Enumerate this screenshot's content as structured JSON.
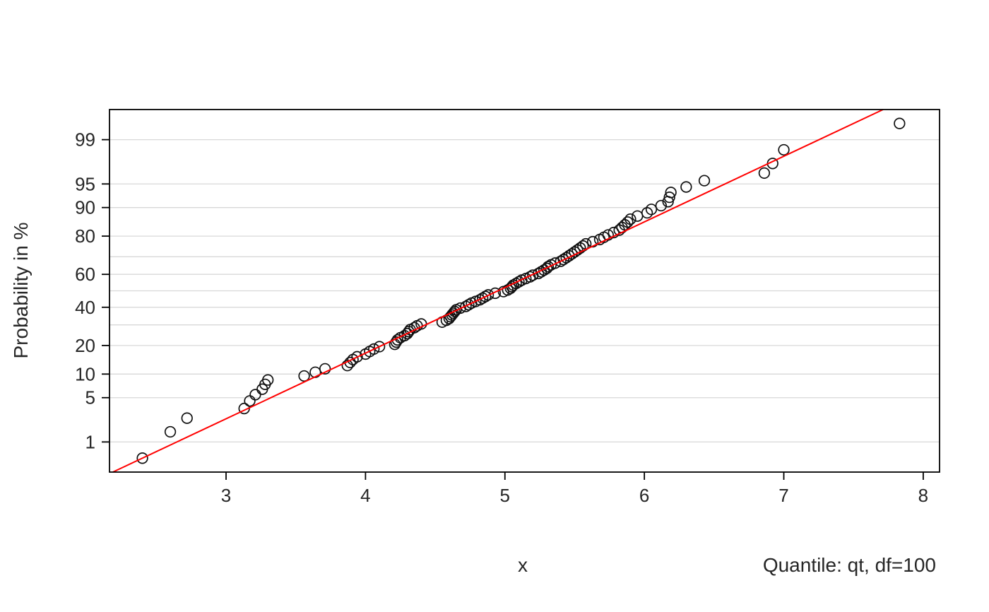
{
  "chart_data": {
    "type": "scatter",
    "subtype": "normal-probability-qq-plot",
    "title": "",
    "xlabel": "x",
    "ylabel": "Probability in %",
    "annotation": "Quantile: qt, df=100",
    "x_ticks": [
      3,
      4,
      5,
      6,
      7,
      8
    ],
    "xlim": [
      2.164,
      8.117
    ],
    "y_scale": "normal-probability",
    "y_range_percent": [
      0.26,
      99.74
    ],
    "y_tick_labels": [
      99,
      95,
      90,
      80,
      60,
      40,
      20,
      10,
      5,
      1
    ],
    "y_gridlines_percent": [
      1,
      5,
      10,
      20,
      30,
      40,
      50,
      60,
      70,
      80,
      90,
      95,
      99
    ],
    "grid_on": true,
    "reference_line": {
      "color": "#ff0000",
      "intercept": 4.95,
      "slope": 0.99,
      "note": "x = intercept + slope * qnorm(p)"
    },
    "point_style": {
      "marker": "open-circle",
      "color": "#111111",
      "radius": 7.3
    },
    "colors": {
      "grid": "#d8d8d8",
      "box": "#000000",
      "text": "#262626",
      "background": "#ffffff"
    },
    "points": [
      [
        2.4,
        0.5
      ],
      [
        2.6,
        1.5
      ],
      [
        2.72,
        2.5
      ],
      [
        3.13,
        3.5
      ],
      [
        3.17,
        4.5
      ],
      [
        3.21,
        5.5
      ],
      [
        3.26,
        6.5
      ],
      [
        3.28,
        7.5
      ],
      [
        3.3,
        8.5
      ],
      [
        3.56,
        9.5
      ],
      [
        3.64,
        10.5
      ],
      [
        3.71,
        11.5
      ],
      [
        3.87,
        12.5
      ],
      [
        3.89,
        13.5
      ],
      [
        3.91,
        14.5
      ],
      [
        3.94,
        15.5
      ],
      [
        4.0,
        16.5
      ],
      [
        4.03,
        17.5
      ],
      [
        4.06,
        18.5
      ],
      [
        4.1,
        19.5
      ],
      [
        4.21,
        20.5
      ],
      [
        4.22,
        21.5
      ],
      [
        4.23,
        22.5
      ],
      [
        4.25,
        23.5
      ],
      [
        4.28,
        24.5
      ],
      [
        4.3,
        25.5
      ],
      [
        4.31,
        26.5
      ],
      [
        4.32,
        27.5
      ],
      [
        4.35,
        28.5
      ],
      [
        4.37,
        29.5
      ],
      [
        4.4,
        30.5
      ],
      [
        4.55,
        31.5
      ],
      [
        4.58,
        32.5
      ],
      [
        4.6,
        33.5
      ],
      [
        4.61,
        34.5
      ],
      [
        4.62,
        35.5
      ],
      [
        4.63,
        36.5
      ],
      [
        4.64,
        37.5
      ],
      [
        4.65,
        38.5
      ],
      [
        4.68,
        39.5
      ],
      [
        4.72,
        40.5
      ],
      [
        4.74,
        41.5
      ],
      [
        4.76,
        42.5
      ],
      [
        4.79,
        43.5
      ],
      [
        4.82,
        44.5
      ],
      [
        4.84,
        45.5
      ],
      [
        4.86,
        46.5
      ],
      [
        4.88,
        47.5
      ],
      [
        4.93,
        48.5
      ],
      [
        4.99,
        49.5
      ],
      [
        5.02,
        50.5
      ],
      [
        5.04,
        51.5
      ],
      [
        5.05,
        52.5
      ],
      [
        5.06,
        53.5
      ],
      [
        5.08,
        54.5
      ],
      [
        5.1,
        55.5
      ],
      [
        5.12,
        56.5
      ],
      [
        5.15,
        57.5
      ],
      [
        5.18,
        58.5
      ],
      [
        5.2,
        59.5
      ],
      [
        5.24,
        60.5
      ],
      [
        5.26,
        61.5
      ],
      [
        5.28,
        62.5
      ],
      [
        5.3,
        63.5
      ],
      [
        5.31,
        64.5
      ],
      [
        5.33,
        65.5
      ],
      [
        5.36,
        66.5
      ],
      [
        5.4,
        67.5
      ],
      [
        5.42,
        68.5
      ],
      [
        5.44,
        69.5
      ],
      [
        5.46,
        70.5
      ],
      [
        5.48,
        71.5
      ],
      [
        5.5,
        72.5
      ],
      [
        5.52,
        73.5
      ],
      [
        5.54,
        74.5
      ],
      [
        5.56,
        75.5
      ],
      [
        5.58,
        76.5
      ],
      [
        5.63,
        77.5
      ],
      [
        5.68,
        78.5
      ],
      [
        5.71,
        79.5
      ],
      [
        5.74,
        80.5
      ],
      [
        5.78,
        81.5
      ],
      [
        5.82,
        82.5
      ],
      [
        5.84,
        83.5
      ],
      [
        5.86,
        84.5
      ],
      [
        5.88,
        85.5
      ],
      [
        5.9,
        86.5
      ],
      [
        5.95,
        87.5
      ],
      [
        6.02,
        88.5
      ],
      [
        6.05,
        89.5
      ],
      [
        6.12,
        90.5
      ],
      [
        6.17,
        91.5
      ],
      [
        6.18,
        92.5
      ],
      [
        6.19,
        93.5
      ],
      [
        6.3,
        94.5
      ],
      [
        6.43,
        95.5
      ],
      [
        6.86,
        96.5
      ],
      [
        6.92,
        97.5
      ],
      [
        7.0,
        98.5
      ],
      [
        7.83,
        99.5
      ]
    ]
  }
}
